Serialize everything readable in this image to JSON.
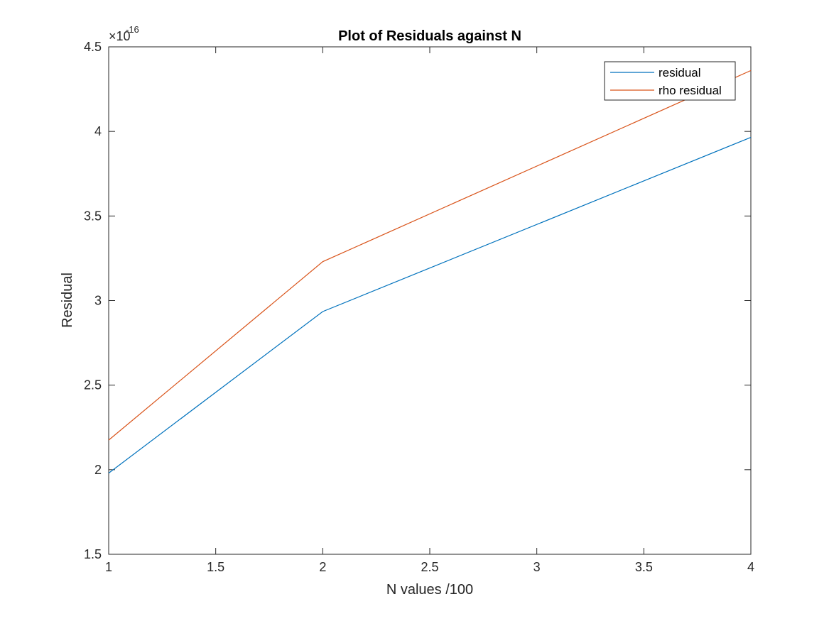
{
  "chart_data": {
    "type": "line",
    "title": "Plot of Residuals against N",
    "xlabel": "N values /100",
    "ylabel": "Residual",
    "xlim": [
      1,
      4
    ],
    "ylim": [
      1.5,
      4.5
    ],
    "y_exponent_base": "×10",
    "y_exponent_power": "-16",
    "xticks": [
      1,
      1.5,
      2,
      2.5,
      3,
      3.5,
      4
    ],
    "xtick_labels": [
      "1",
      "1.5",
      "2",
      "2.5",
      "3",
      "3.5",
      "4"
    ],
    "yticks": [
      1.5,
      2,
      2.5,
      3,
      3.5,
      4,
      4.5
    ],
    "ytick_labels": [
      "1.5",
      "2",
      "2.5",
      "3",
      "3.5",
      "4",
      "4.5"
    ],
    "grid": false,
    "legend_position": "top-right",
    "series": [
      {
        "name": "residual",
        "color": "#0072BD",
        "x": [
          1,
          2,
          4
        ],
        "y": [
          1.98,
          2.935,
          3.965
        ]
      },
      {
        "name": "rho residual",
        "color": "#D95319",
        "x": [
          1,
          2,
          4
        ],
        "y": [
          2.175,
          3.23,
          4.36
        ]
      }
    ]
  }
}
